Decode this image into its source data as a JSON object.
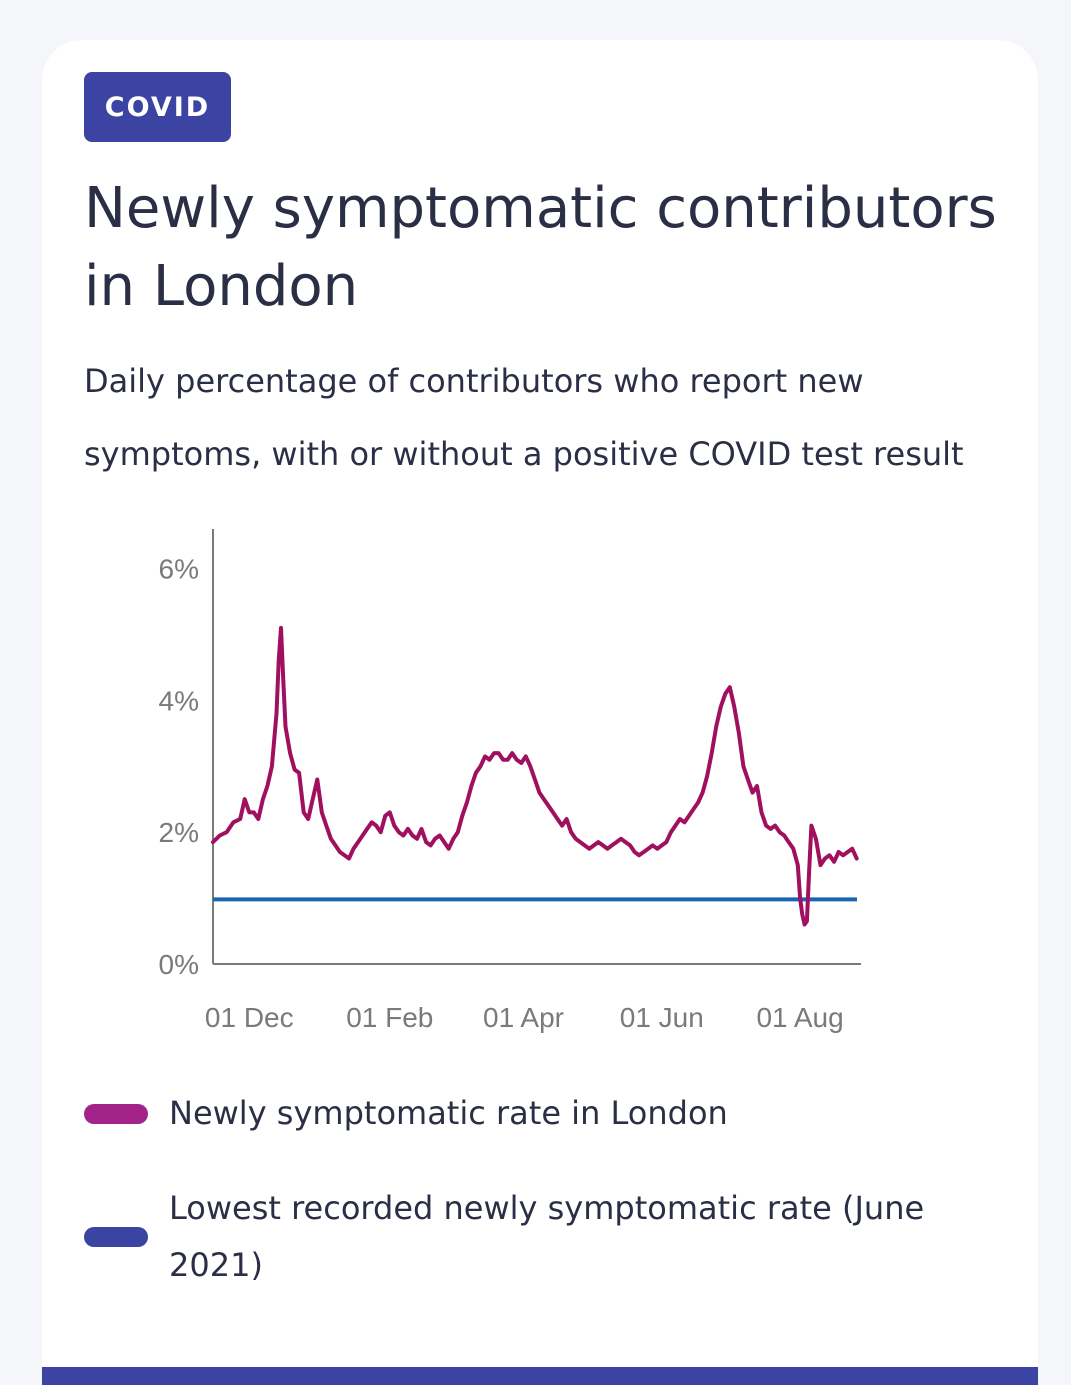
{
  "badge": {
    "label": "COVID"
  },
  "header": {
    "title": "Newly symptomatic contributors in London",
    "subtitle": "Daily percentage of contributors who report new symptoms, with or without a positive COVID test result"
  },
  "colors": {
    "badge_bg": "#3b44a2",
    "series_line": "#a0105e",
    "baseline_line": "#1a64b0",
    "legend_series": "#a3238b",
    "legend_baseline": "#3b44a2",
    "axis": "#7a7a7a",
    "bottom_bar": "#3b44a2"
  },
  "chart_data": {
    "type": "line",
    "title": "Newly symptomatic contributors in London",
    "xlabel": "",
    "ylabel": "",
    "ylim": [
      0,
      6.6
    ],
    "grid": false,
    "y_ticks": [
      {
        "value": 0,
        "label": "0%"
      },
      {
        "value": 2,
        "label": "2%"
      },
      {
        "value": 4,
        "label": "4%"
      },
      {
        "value": 6,
        "label": "6%"
      }
    ],
    "x_range": [
      0,
      285
    ],
    "x_ticks": [
      {
        "day": 16,
        "label": "01 Dec"
      },
      {
        "day": 78,
        "label": "01 Feb"
      },
      {
        "day": 137,
        "label": "01 Apr"
      },
      {
        "day": 198,
        "label": "01 Jun"
      },
      {
        "day": 259,
        "label": "01 Aug"
      }
    ],
    "series": [
      {
        "name": "Newly symptomatic rate in London",
        "points": [
          [
            0,
            1.85
          ],
          [
            3,
            1.95
          ],
          [
            6,
            2.0
          ],
          [
            9,
            2.15
          ],
          [
            12,
            2.2
          ],
          [
            14,
            2.5
          ],
          [
            16,
            2.3
          ],
          [
            18,
            2.3
          ],
          [
            20,
            2.2
          ],
          [
            22,
            2.5
          ],
          [
            24,
            2.7
          ],
          [
            26,
            3.0
          ],
          [
            28,
            3.8
          ],
          [
            29,
            4.6
          ],
          [
            30,
            5.1
          ],
          [
            31,
            4.3
          ],
          [
            32,
            3.6
          ],
          [
            34,
            3.2
          ],
          [
            36,
            2.95
          ],
          [
            38,
            2.9
          ],
          [
            40,
            2.3
          ],
          [
            42,
            2.2
          ],
          [
            44,
            2.5
          ],
          [
            46,
            2.8
          ],
          [
            48,
            2.3
          ],
          [
            50,
            2.1
          ],
          [
            52,
            1.9
          ],
          [
            54,
            1.8
          ],
          [
            56,
            1.7
          ],
          [
            58,
            1.65
          ],
          [
            60,
            1.6
          ],
          [
            62,
            1.75
          ],
          [
            64,
            1.85
          ],
          [
            66,
            1.95
          ],
          [
            68,
            2.05
          ],
          [
            70,
            2.15
          ],
          [
            72,
            2.1
          ],
          [
            74,
            2.0
          ],
          [
            76,
            2.25
          ],
          [
            78,
            2.3
          ],
          [
            80,
            2.1
          ],
          [
            82,
            2.0
          ],
          [
            84,
            1.95
          ],
          [
            86,
            2.05
          ],
          [
            88,
            1.95
          ],
          [
            90,
            1.9
          ],
          [
            92,
            2.05
          ],
          [
            94,
            1.85
          ],
          [
            96,
            1.8
          ],
          [
            98,
            1.9
          ],
          [
            100,
            1.95
          ],
          [
            102,
            1.85
          ],
          [
            104,
            1.75
          ],
          [
            106,
            1.9
          ],
          [
            108,
            2.0
          ],
          [
            110,
            2.25
          ],
          [
            112,
            2.45
          ],
          [
            114,
            2.7
          ],
          [
            116,
            2.9
          ],
          [
            118,
            3.0
          ],
          [
            120,
            3.15
          ],
          [
            122,
            3.1
          ],
          [
            124,
            3.2
          ],
          [
            126,
            3.2
          ],
          [
            128,
            3.1
          ],
          [
            130,
            3.1
          ],
          [
            132,
            3.2
          ],
          [
            134,
            3.1
          ],
          [
            136,
            3.05
          ],
          [
            138,
            3.15
          ],
          [
            140,
            3.0
          ],
          [
            142,
            2.8
          ],
          [
            144,
            2.6
          ],
          [
            146,
            2.5
          ],
          [
            148,
            2.4
          ],
          [
            150,
            2.3
          ],
          [
            152,
            2.2
          ],
          [
            154,
            2.1
          ],
          [
            156,
            2.2
          ],
          [
            158,
            2.0
          ],
          [
            160,
            1.9
          ],
          [
            162,
            1.85
          ],
          [
            164,
            1.8
          ],
          [
            166,
            1.75
          ],
          [
            168,
            1.8
          ],
          [
            170,
            1.85
          ],
          [
            172,
            1.8
          ],
          [
            174,
            1.75
          ],
          [
            176,
            1.8
          ],
          [
            178,
            1.85
          ],
          [
            180,
            1.9
          ],
          [
            182,
            1.85
          ],
          [
            184,
            1.8
          ],
          [
            186,
            1.7
          ],
          [
            188,
            1.65
          ],
          [
            190,
            1.7
          ],
          [
            192,
            1.75
          ],
          [
            194,
            1.8
          ],
          [
            196,
            1.75
          ],
          [
            198,
            1.8
          ],
          [
            200,
            1.85
          ],
          [
            202,
            2.0
          ],
          [
            204,
            2.1
          ],
          [
            206,
            2.2
          ],
          [
            208,
            2.15
          ],
          [
            210,
            2.25
          ],
          [
            212,
            2.35
          ],
          [
            214,
            2.45
          ],
          [
            216,
            2.6
          ],
          [
            218,
            2.85
          ],
          [
            220,
            3.2
          ],
          [
            222,
            3.6
          ],
          [
            224,
            3.9
          ],
          [
            226,
            4.1
          ],
          [
            228,
            4.2
          ],
          [
            230,
            3.9
          ],
          [
            232,
            3.5
          ],
          [
            234,
            3.0
          ],
          [
            236,
            2.8
          ],
          [
            238,
            2.6
          ],
          [
            240,
            2.7
          ],
          [
            242,
            2.3
          ],
          [
            244,
            2.1
          ],
          [
            246,
            2.05
          ],
          [
            248,
            2.1
          ],
          [
            250,
            2.0
          ],
          [
            252,
            1.95
          ],
          [
            254,
            1.85
          ],
          [
            256,
            1.75
          ],
          [
            258,
            1.5
          ],
          [
            259,
            1.0
          ],
          [
            260,
            0.75
          ],
          [
            261,
            0.6
          ],
          [
            262,
            0.65
          ],
          [
            263,
            1.4
          ],
          [
            264,
            2.1
          ],
          [
            266,
            1.9
          ],
          [
            268,
            1.5
          ],
          [
            270,
            1.6
          ],
          [
            272,
            1.65
          ],
          [
            274,
            1.55
          ],
          [
            276,
            1.7
          ],
          [
            278,
            1.65
          ],
          [
            280,
            1.7
          ],
          [
            282,
            1.75
          ],
          [
            284,
            1.6
          ]
        ]
      },
      {
        "name": "Lowest recorded newly symptomatic rate (June 2021)",
        "constant": 0.98
      }
    ],
    "legend": [
      {
        "label": "Newly symptomatic rate in London"
      },
      {
        "label": "Lowest recorded newly symptomatic rate (June 2021)"
      }
    ]
  }
}
